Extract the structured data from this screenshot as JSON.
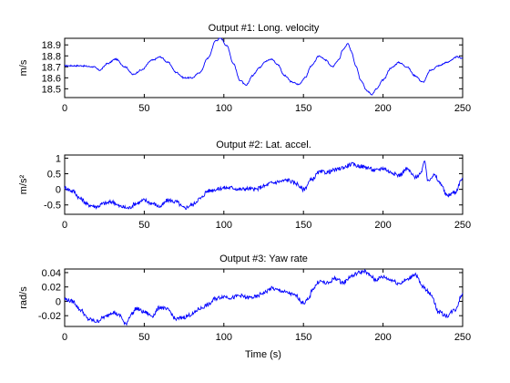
{
  "figure": {
    "xlabel": "Time (s)"
  },
  "colors": {
    "series": "#0000ff",
    "axes": "#000000",
    "background": "#ffffff"
  },
  "chart_data": [
    {
      "type": "line",
      "title": "Output #1: Long. velocity",
      "xlabel": "",
      "ylabel": "m/s",
      "xlim": [
        0,
        250
      ],
      "ylim": [
        18.42,
        18.96
      ],
      "xticks": [
        0,
        50,
        100,
        150,
        200,
        250
      ],
      "xtick_labels": [
        "0",
        "50",
        "100",
        "150",
        "200",
        "250"
      ],
      "yticks": [
        18.5,
        18.6,
        18.7,
        18.8,
        18.9
      ],
      "ytick_labels": [
        "18.5",
        "18.6",
        "18.7",
        "18.8",
        "18.9"
      ],
      "grid": false,
      "series": [
        {
          "x": [
            0,
            10,
            18,
            22,
            27,
            32,
            38,
            43,
            48,
            55,
            60,
            65,
            70,
            75,
            80,
            85,
            90,
            95,
            98,
            102,
            106,
            110,
            114,
            118,
            122,
            126,
            130,
            134,
            138,
            143,
            147,
            151,
            155,
            160,
            164,
            168,
            172,
            175,
            178,
            180,
            183,
            186,
            190,
            193,
            196,
            200,
            205,
            210,
            215,
            220,
            225,
            230,
            235,
            240,
            243,
            246,
            250
          ],
          "values": [
            18.71,
            18.71,
            18.7,
            18.67,
            18.73,
            18.77,
            18.7,
            18.63,
            18.67,
            18.76,
            18.79,
            18.74,
            18.65,
            18.6,
            18.6,
            18.65,
            18.78,
            18.94,
            18.96,
            18.89,
            18.73,
            18.58,
            18.53,
            18.62,
            18.69,
            18.75,
            18.77,
            18.72,
            18.62,
            18.56,
            18.54,
            18.6,
            18.71,
            18.8,
            18.76,
            18.7,
            18.76,
            18.86,
            18.91,
            18.84,
            18.71,
            18.58,
            18.48,
            18.45,
            18.5,
            18.58,
            18.69,
            18.74,
            18.7,
            18.62,
            18.56,
            18.67,
            18.71,
            18.74,
            18.76,
            18.79,
            18.78
          ]
        }
      ]
    },
    {
      "type": "line",
      "title": "Output #2: Lat. accel.",
      "xlabel": "",
      "ylabel": "m/s²",
      "xlim": [
        0,
        250
      ],
      "ylim": [
        -0.8,
        1.1
      ],
      "xticks": [
        0,
        50,
        100,
        150,
        200,
        250
      ],
      "xtick_labels": [
        "0",
        "50",
        "100",
        "150",
        "200",
        "250"
      ],
      "yticks": [
        -0.5,
        0,
        0.5,
        1
      ],
      "ytick_labels": [
        "-0.5",
        "0",
        "0.5",
        "1"
      ],
      "grid": false,
      "series": [
        {
          "x": [
            0,
            5,
            10,
            15,
            20,
            25,
            30,
            35,
            40,
            45,
            50,
            55,
            60,
            65,
            70,
            75,
            80,
            85,
            90,
            95,
            100,
            105,
            110,
            115,
            120,
            125,
            130,
            135,
            140,
            145,
            150,
            155,
            160,
            165,
            170,
            175,
            180,
            185,
            190,
            195,
            200,
            205,
            210,
            215,
            220,
            224,
            226,
            228,
            232,
            236,
            240,
            245,
            250
          ],
          "values": [
            0.05,
            -0.05,
            -0.3,
            -0.5,
            -0.55,
            -0.45,
            -0.4,
            -0.55,
            -0.6,
            -0.45,
            -0.35,
            -0.45,
            -0.55,
            -0.35,
            -0.4,
            -0.6,
            -0.5,
            -0.3,
            -0.05,
            0.0,
            0.05,
            0.05,
            0.0,
            0.02,
            0.0,
            0.1,
            0.2,
            0.25,
            0.3,
            0.2,
            0.0,
            0.3,
            0.55,
            0.55,
            0.62,
            0.7,
            0.8,
            0.75,
            0.7,
            0.6,
            0.68,
            0.55,
            0.45,
            0.65,
            0.4,
            0.5,
            0.95,
            0.3,
            0.45,
            0.2,
            -0.2,
            -0.1,
            0.35
          ]
        }
      ]
    },
    {
      "type": "line",
      "title": "Output #3: Yaw rate",
      "xlabel": "Time (s)",
      "ylabel": "rad/s",
      "xlim": [
        0,
        250
      ],
      "ylim": [
        -0.035,
        0.045
      ],
      "xticks": [
        0,
        50,
        100,
        150,
        200,
        250
      ],
      "xtick_labels": [
        "0",
        "50",
        "100",
        "150",
        "200",
        "250"
      ],
      "yticks": [
        -0.02,
        0,
        0.02,
        0.04
      ],
      "ytick_labels": [
        "-0.02",
        "0",
        "0.02",
        "0.04"
      ],
      "grid": false,
      "series": [
        {
          "x": [
            0,
            5,
            10,
            15,
            20,
            25,
            30,
            35,
            38,
            42,
            45,
            50,
            55,
            60,
            65,
            70,
            75,
            80,
            85,
            90,
            95,
            100,
            105,
            110,
            115,
            120,
            125,
            130,
            135,
            140,
            145,
            150,
            153,
            156,
            160,
            165,
            170,
            175,
            180,
            185,
            188,
            192,
            195,
            200,
            205,
            210,
            215,
            220,
            225,
            230,
            235,
            240,
            245,
            250
          ],
          "values": [
            0.003,
            0.0,
            -0.012,
            -0.025,
            -0.028,
            -0.022,
            -0.015,
            -0.02,
            -0.032,
            -0.018,
            -0.01,
            -0.015,
            -0.02,
            -0.008,
            -0.012,
            -0.025,
            -0.022,
            -0.018,
            -0.01,
            -0.005,
            0.004,
            0.007,
            0.005,
            0.008,
            0.005,
            0.006,
            0.012,
            0.018,
            0.015,
            0.012,
            0.008,
            -0.002,
            0.002,
            0.018,
            0.028,
            0.025,
            0.032,
            0.026,
            0.035,
            0.04,
            0.042,
            0.036,
            0.03,
            0.034,
            0.03,
            0.025,
            0.03,
            0.038,
            0.02,
            0.01,
            -0.015,
            -0.02,
            -0.012,
            0.01
          ]
        }
      ]
    }
  ]
}
